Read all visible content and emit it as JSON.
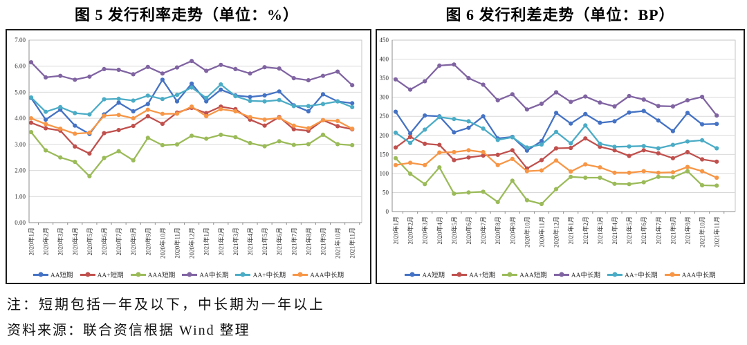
{
  "notes": {
    "note": "注：短期包括一年及以下，中长期为一年以上",
    "source": "资料来源：联合资信根据 Wind 整理"
  },
  "palette": {
    "grid": "#d9d9d9",
    "plot_border": "#c6c6c6",
    "axis": "#8c8c8c",
    "frame": "#1a1a1a",
    "tick_label": "#333333"
  },
  "chart_data": [
    {
      "type": "line",
      "id": "fig5",
      "title": "图 5 发行利率走势（单位：%）",
      "unit": "%",
      "legend_position": "bottom",
      "grid": true,
      "y_axis": {
        "min": 0,
        "max": 7,
        "step": 1,
        "decimals": 2
      },
      "categories": [
        "2020年1月",
        "2020年2月",
        "2020年3月",
        "2020年4月",
        "2020年5月",
        "2020年6月",
        "2020年7月",
        "2020年8月",
        "2020年9月",
        "2020年10月",
        "2020年11月",
        "2020年12月",
        "2021年1月",
        "2021年2月",
        "2021年3月",
        "2021年4月",
        "2021年5月",
        "2021年6月",
        "2021年7月",
        "2021年8月",
        "2021年9月",
        "2021年10月",
        "2021年11月"
      ],
      "series": [
        {
          "name": "AA短期",
          "key": "aa-short",
          "color": "#4472C4",
          "values": [
            4.78,
            3.95,
            4.33,
            3.72,
            3.4,
            4.15,
            4.6,
            4.27,
            4.55,
            5.48,
            4.65,
            5.33,
            4.65,
            5.1,
            4.88,
            4.82,
            4.88,
            5.03,
            4.5,
            4.27,
            4.92,
            4.65,
            4.58
          ]
        },
        {
          "name": "AA+短期",
          "key": "aa-plus-short",
          "color": "#C0504D",
          "values": [
            3.83,
            3.62,
            3.53,
            2.92,
            2.65,
            3.43,
            3.55,
            3.71,
            4.08,
            3.79,
            4.22,
            4.4,
            4.2,
            4.45,
            4.35,
            3.95,
            3.72,
            4.05,
            3.58,
            3.52,
            3.93,
            3.7,
            3.58
          ]
        },
        {
          "name": "AAA短期",
          "key": "aaa-short",
          "color": "#9BBB59",
          "values": [
            3.47,
            2.77,
            2.5,
            2.33,
            1.78,
            2.48,
            2.74,
            2.39,
            3.25,
            2.97,
            3.0,
            3.33,
            3.22,
            3.37,
            3.28,
            3.05,
            2.93,
            3.12,
            2.98,
            3.01,
            3.37,
            3.01,
            2.97
          ]
        },
        {
          "name": "AA中长期",
          "key": "aa-mid-long",
          "color": "#8064A2",
          "values": [
            6.15,
            5.57,
            5.63,
            5.48,
            5.6,
            5.89,
            5.86,
            5.69,
            5.97,
            5.72,
            5.95,
            6.2,
            5.82,
            6.05,
            5.89,
            5.72,
            5.96,
            5.91,
            5.54,
            5.46,
            5.63,
            5.79,
            5.27
          ]
        },
        {
          "name": "AA+中长期",
          "key": "aa-plus-mid-long",
          "color": "#4BACC6",
          "values": [
            4.8,
            4.25,
            4.43,
            4.2,
            4.15,
            4.73,
            4.75,
            4.68,
            4.87,
            4.74,
            4.9,
            5.18,
            4.78,
            5.3,
            4.85,
            4.67,
            4.65,
            4.7,
            4.47,
            4.47,
            4.55,
            4.65,
            4.43
          ]
        },
        {
          "name": "AAA中长期",
          "key": "aaa-mid-long",
          "color": "#F79646",
          "values": [
            4.0,
            3.78,
            3.6,
            3.41,
            3.45,
            4.1,
            4.13,
            4.0,
            4.33,
            4.17,
            4.18,
            4.45,
            4.08,
            4.35,
            4.27,
            4.05,
            3.95,
            4.02,
            3.72,
            3.62,
            3.93,
            3.9,
            3.6
          ]
        }
      ]
    },
    {
      "type": "line",
      "id": "fig6",
      "title": "图 6 发行利差走势（单位：BP）",
      "unit": "BP",
      "legend_position": "bottom",
      "grid": true,
      "y_axis": {
        "min": 0,
        "max": 450,
        "step": 50,
        "decimals": 0
      },
      "categories": [
        "2020年1月",
        "2020年2月",
        "2020年3月",
        "2020年4月",
        "2020年5月",
        "2020年6月",
        "2020年7月",
        "2020年8月",
        "2020年9月",
        "2020年10月",
        "2020年11月",
        "2020年12月",
        "2021年1月",
        "2021年2月",
        "2021年3月",
        "2021年4月",
        "2021年5月",
        "2021年6月",
        "2021年7月",
        "2021年8月",
        "2021年9月",
        "2021年10月",
        "2021年11月"
      ],
      "series": [
        {
          "name": "AA短期",
          "key": "aa-short",
          "color": "#4472C4",
          "values": [
            262,
            205,
            252,
            250,
            208,
            220,
            250,
            192,
            196,
            160,
            185,
            259,
            231,
            256,
            233,
            237,
            260,
            264,
            239,
            211,
            259,
            229,
            230
          ]
        },
        {
          "name": "AA+短期",
          "key": "aa-plus-short",
          "color": "#C0504D",
          "values": [
            168,
            196,
            178,
            175,
            135,
            142,
            147,
            149,
            161,
            113,
            135,
            166,
            167,
            192,
            170,
            161,
            146,
            161,
            153,
            140,
            156,
            137,
            131
          ]
        },
        {
          "name": "AAA短期",
          "key": "aaa-short",
          "color": "#9BBB59",
          "values": [
            140,
            99,
            72,
            116,
            47,
            50,
            52,
            25,
            81,
            30,
            20,
            59,
            91,
            89,
            89,
            73,
            72,
            77,
            91,
            90,
            106,
            69,
            68
          ]
        },
        {
          "name": "AA中长期",
          "key": "aa-mid-long",
          "color": "#8064A2",
          "values": [
            347,
            320,
            342,
            383,
            386,
            350,
            333,
            292,
            308,
            268,
            283,
            313,
            288,
            302,
            286,
            276,
            303,
            294,
            277,
            276,
            292,
            301,
            252
          ]
        },
        {
          "name": "AA+中长期",
          "key": "aa-plus-mid-long",
          "color": "#4BACC6",
          "values": [
            207,
            180,
            215,
            248,
            243,
            237,
            218,
            188,
            195,
            168,
            176,
            209,
            179,
            226,
            178,
            170,
            171,
            172,
            166,
            175,
            184,
            187,
            166
          ]
        },
        {
          "name": "AAA中长期",
          "key": "aaa-mid-long",
          "color": "#F79646",
          "values": [
            122,
            128,
            122,
            155,
            156,
            161,
            156,
            122,
            138,
            106,
            108,
            134,
            105,
            124,
            116,
            102,
            102,
            106,
            102,
            103,
            117,
            106,
            89
          ]
        }
      ]
    }
  ]
}
